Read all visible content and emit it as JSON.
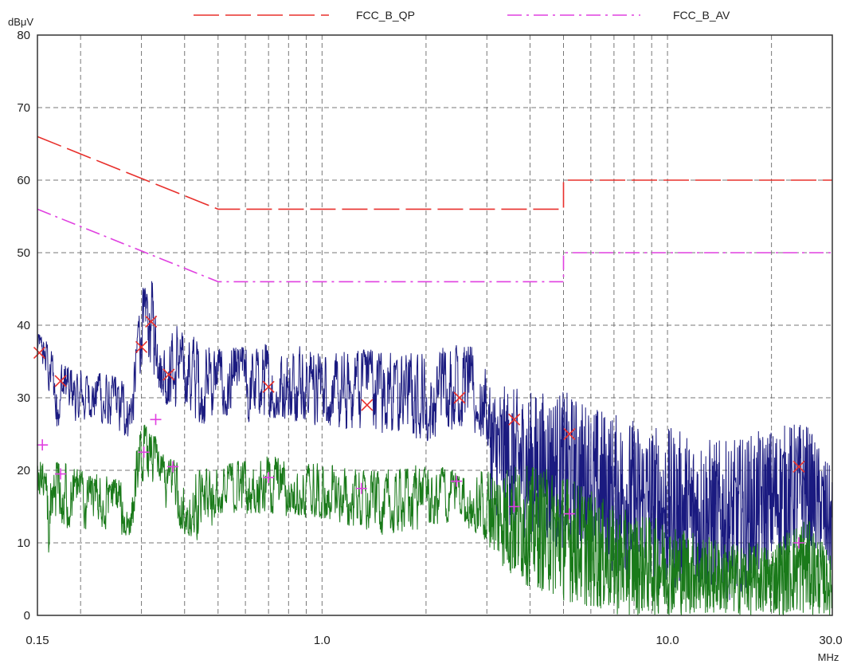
{
  "chart_data": {
    "type": "line",
    "title": "",
    "xlabel": "",
    "ylabel": "",
    "x_unit": "MHz",
    "y_unit": "dBμV",
    "x_scale": "log",
    "xlim": [
      0.15,
      30.0
    ],
    "ylim": [
      0,
      80
    ],
    "grid": true,
    "legend_placement": "top",
    "y_ticks": [
      "0",
      "10",
      "20",
      "30",
      "40",
      "50",
      "60",
      "70",
      "80"
    ],
    "x_ticks": [
      {
        "value": 0.15,
        "label": "0.15"
      },
      {
        "value": 1.0,
        "label": "1.0"
      },
      {
        "value": 10.0,
        "label": "10.0"
      },
      {
        "value": 30.0,
        "label": "30.0"
      }
    ],
    "limit_lines": [
      {
        "name": "FCC_B_QP",
        "color": "#e8302c",
        "dash": "dashed",
        "points": [
          [
            0.15,
            66
          ],
          [
            0.5,
            56
          ],
          [
            5.0,
            56
          ],
          [
            5.0,
            60
          ],
          [
            30.0,
            60
          ]
        ]
      },
      {
        "name": "FCC_B_AV",
        "color": "#e040e0",
        "dash": "dashdot",
        "points": [
          [
            0.15,
            56
          ],
          [
            0.5,
            46
          ],
          [
            5.0,
            46
          ],
          [
            5.0,
            50
          ],
          [
            30.0,
            50
          ]
        ]
      }
    ],
    "series": [
      {
        "color": "#1a1a80",
        "envelope": [
          [
            0.15,
            35,
            39
          ],
          [
            0.16,
            32,
            38
          ],
          [
            0.17,
            26,
            35
          ],
          [
            0.2,
            27,
            34
          ],
          [
            0.25,
            26,
            33
          ],
          [
            0.28,
            24,
            32
          ],
          [
            0.29,
            28,
            38
          ],
          [
            0.3,
            33,
            45
          ],
          [
            0.32,
            34,
            47
          ],
          [
            0.35,
            29,
            40
          ],
          [
            0.4,
            28,
            40
          ],
          [
            0.45,
            26,
            37
          ],
          [
            0.5,
            28,
            37
          ],
          [
            0.6,
            26,
            37
          ],
          [
            0.8,
            27,
            38
          ],
          [
            1.0,
            26,
            36
          ],
          [
            1.5,
            25,
            37
          ],
          [
            2.0,
            24,
            36
          ],
          [
            2.5,
            26,
            38
          ],
          [
            3.0,
            24,
            36
          ],
          [
            3.1,
            14,
            32
          ],
          [
            4.0,
            10,
            31
          ],
          [
            5.0,
            9,
            31
          ],
          [
            7.0,
            5,
            28
          ],
          [
            10.0,
            3,
            26
          ],
          [
            15.0,
            2,
            24
          ],
          [
            20.0,
            6,
            26
          ],
          [
            25.0,
            9,
            27
          ],
          [
            30.0,
            5,
            20
          ]
        ]
      },
      {
        "color": "#1a7a1a",
        "envelope": [
          [
            0.15,
            18,
            24
          ],
          [
            0.16,
            10,
            20
          ],
          [
            0.165,
            6,
            18
          ],
          [
            0.17,
            12,
            22
          ],
          [
            0.2,
            12,
            20
          ],
          [
            0.25,
            11,
            19
          ],
          [
            0.28,
            11,
            18
          ],
          [
            0.3,
            18,
            27
          ],
          [
            0.32,
            18,
            26
          ],
          [
            0.35,
            15,
            22
          ],
          [
            0.4,
            11,
            21
          ],
          [
            0.45,
            9,
            20
          ],
          [
            0.5,
            14,
            21
          ],
          [
            0.7,
            14,
            22
          ],
          [
            1.0,
            13,
            21
          ],
          [
            1.3,
            12,
            20
          ],
          [
            1.5,
            11,
            20
          ],
          [
            2.0,
            12,
            21
          ],
          [
            2.5,
            13,
            20
          ],
          [
            3.0,
            10,
            20
          ],
          [
            3.5,
            5,
            21
          ],
          [
            5.0,
            2,
            20
          ],
          [
            7.0,
            0,
            15
          ],
          [
            10.0,
            0,
            13
          ],
          [
            15.0,
            0,
            10
          ],
          [
            20.0,
            0,
            10
          ],
          [
            25.0,
            0,
            14
          ],
          [
            30.0,
            0,
            8
          ]
        ]
      }
    ],
    "qp_markers": [
      [
        0.152,
        36.2
      ],
      [
        0.175,
        32.3
      ],
      [
        0.3,
        37
      ],
      [
        0.32,
        40.5
      ],
      [
        0.36,
        33.2
      ],
      [
        0.7,
        31.5
      ],
      [
        1.35,
        29
      ],
      [
        2.5,
        30
      ],
      [
        3.6,
        27
      ],
      [
        5.2,
        25
      ],
      [
        24.0,
        20.5
      ]
    ],
    "av_markers": [
      [
        0.155,
        23.5
      ],
      [
        0.175,
        19.5
      ],
      [
        0.305,
        22.5
      ],
      [
        0.33,
        27
      ],
      [
        0.37,
        20.5
      ],
      [
        0.7,
        19
      ],
      [
        1.3,
        17.5
      ],
      [
        2.45,
        18.5
      ],
      [
        3.6,
        15
      ],
      [
        5.2,
        14
      ],
      [
        24.0,
        10
      ]
    ],
    "qp_marker_color": "#e8302c",
    "av_marker_color": "#e040e0"
  }
}
